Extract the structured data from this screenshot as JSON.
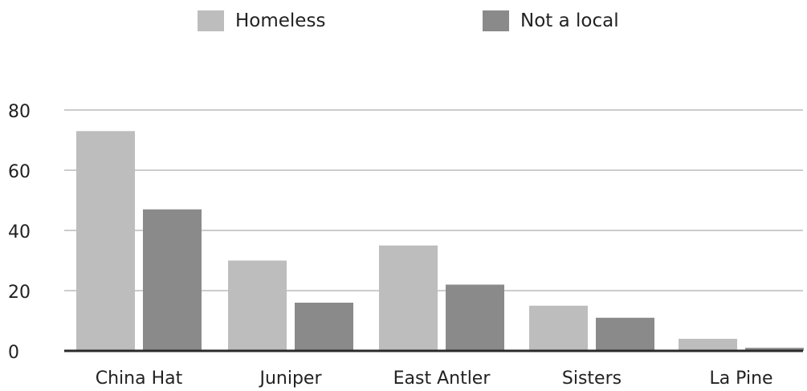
{
  "chart_data": {
    "type": "bar",
    "categories": [
      "China Hat",
      "Juniper",
      "East Antler",
      "Sisters",
      "La Pine"
    ],
    "series": [
      {
        "name": "Homeless",
        "values": [
          73,
          30,
          35,
          15,
          4
        ],
        "color": "#bdbdbd"
      },
      {
        "name": "Not a local",
        "values": [
          47,
          16,
          22,
          11,
          1
        ],
        "color": "#8a8a8a"
      }
    ],
    "ylim": [
      0,
      80
    ],
    "yticks": [
      "0",
      "20",
      "40",
      "60",
      "80"
    ],
    "grid": true,
    "legend_position": "top"
  }
}
